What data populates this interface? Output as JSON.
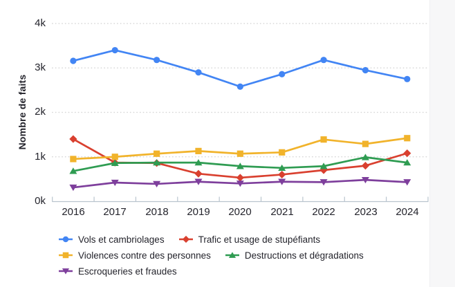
{
  "page": {
    "background_color": "#ffffff",
    "right_margin_strip_color": "#f7f7f8"
  },
  "chart_data": {
    "type": "line",
    "title": "",
    "ylabel": "Nombre de faits",
    "xlabel": "",
    "categories": [
      "2016",
      "2017",
      "2018",
      "2019",
      "2020",
      "2021",
      "2022",
      "2023",
      "2024"
    ],
    "y_ticks": [
      "0k",
      "1k",
      "2k",
      "3k",
      "4k"
    ],
    "ylim": [
      0,
      4000
    ],
    "grid": "horizontal-dotted",
    "legend_position": "bottom-left",
    "axis_color": "#b9c4ce",
    "grid_color": "#d7d7d7",
    "text_color": "#24242c",
    "series": [
      {
        "name": "Vols et cambriolages",
        "color": "#4285f4",
        "marker": "circle",
        "values": [
          3160,
          3400,
          3180,
          2900,
          2580,
          2860,
          3180,
          2950,
          2750
        ]
      },
      {
        "name": "Trafic et usage de stupéfiants",
        "color": "#d9402f",
        "marker": "diamond",
        "values": [
          1400,
          870,
          860,
          620,
          530,
          600,
          700,
          800,
          1080
        ]
      },
      {
        "name": "Violences contre des personnes",
        "color": "#f1b32b",
        "marker": "square",
        "values": [
          950,
          1000,
          1070,
          1130,
          1070,
          1100,
          1390,
          1290,
          1420
        ]
      },
      {
        "name": "Destructions et dégradations",
        "color": "#2f9c52",
        "marker": "triangle-up",
        "values": [
          680,
          860,
          870,
          870,
          790,
          750,
          790,
          990,
          870
        ]
      },
      {
        "name": "Escroqueries et fraudes",
        "color": "#7e3f9c",
        "marker": "triangle-down",
        "values": [
          310,
          420,
          390,
          440,
          400,
          440,
          430,
          480,
          430
        ]
      }
    ]
  }
}
